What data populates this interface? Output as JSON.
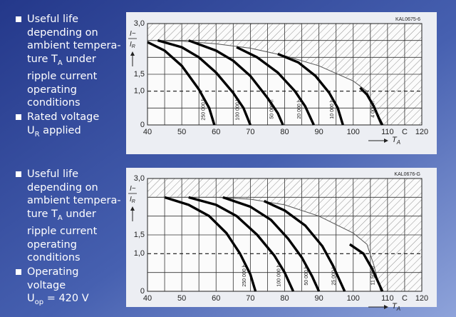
{
  "notes": [
    {
      "bullets": [
        {
          "lines": [
            [
              "Useful life"
            ],
            [
              "depending on"
            ],
            [
              "ambient tempera-"
            ],
            [
              "ture T",
              {
                "sub": "A"
              },
              " under"
            ],
            [
              "ripple current"
            ],
            [
              "operating"
            ],
            [
              "conditions"
            ]
          ]
        },
        {
          "lines": [
            [
              "Rated voltage"
            ],
            [
              "U",
              {
                "sub": "R"
              },
              " applied"
            ]
          ]
        }
      ]
    },
    {
      "bullets": [
        {
          "lines": [
            [
              "Useful life"
            ],
            [
              "depending on"
            ],
            [
              "ambient tempera-"
            ],
            [
              "ture T",
              {
                "sub": "A"
              },
              " under"
            ],
            [
              "ripple current"
            ],
            [
              "operating"
            ],
            [
              "conditions"
            ]
          ]
        },
        {
          "lines": [
            [
              "Operating"
            ],
            [
              "voltage"
            ],
            [
              "U",
              {
                "sub": "op"
              },
              " = 420 V"
            ]
          ]
        }
      ]
    }
  ],
  "chart_data": [
    {
      "type": "line",
      "code": "KAL0675-6",
      "ylabel": {
        "numerator": "I~",
        "denominator": "I",
        "denominator_sub": "R"
      },
      "xlabel": {
        "text": "T",
        "sub": "A"
      },
      "xlim": [
        40,
        120
      ],
      "ylim": [
        0,
        3
      ],
      "xticks": [
        40,
        50,
        60,
        70,
        80,
        90,
        100,
        110,
        {
          "value": 115,
          "label": "C"
        },
        120
      ],
      "yticks": [
        {
          "value": 3,
          "label": "3,0"
        },
        {
          "value": 1.5,
          "label": "1,5"
        },
        {
          "value": 1,
          "label": "1,0"
        },
        0
      ],
      "xgrid": [
        45,
        50,
        55,
        60,
        65,
        70,
        75,
        80,
        85,
        90,
        95,
        100,
        105,
        110,
        115
      ],
      "ygrid": [
        0.5,
        1.5,
        2,
        2.5
      ],
      "reference_line": 1,
      "limit": {
        "x": [
          40,
          50,
          60,
          70,
          80,
          90,
          100,
          104,
          106,
          108
        ],
        "values": [
          2.5,
          2.48,
          2.4,
          2.27,
          2.05,
          1.75,
          1.3,
          1.0,
          0.5,
          0
        ]
      },
      "series": [
        {
          "name": "250 000 h",
          "color": "#000000",
          "x": [
            40,
            45,
            50,
            55,
            58,
            59.5
          ],
          "values": [
            2.45,
            2.2,
            1.75,
            1.05,
            0.5,
            0
          ]
        },
        {
          "name": "100 000 h",
          "color": "#000000",
          "x": [
            43,
            50,
            55,
            60,
            65,
            68,
            70
          ],
          "values": [
            2.5,
            2.3,
            2.0,
            1.55,
            0.95,
            0.5,
            0
          ]
        },
        {
          "name": "50 000 h",
          "color": "#000000",
          "x": [
            52,
            60,
            65,
            70,
            75,
            78,
            79.5
          ],
          "values": [
            2.5,
            2.2,
            1.9,
            1.45,
            0.8,
            0.35,
            0
          ]
        },
        {
          "name": "20 000 h",
          "color": "#000000",
          "x": [
            66,
            72,
            78,
            83,
            86,
            88.5
          ],
          "values": [
            2.3,
            2.0,
            1.55,
            1.0,
            0.55,
            0
          ]
        },
        {
          "name": "10 000 h",
          "color": "#000000",
          "x": [
            78,
            84,
            89,
            93,
            95.5,
            97
          ],
          "values": [
            2.1,
            1.85,
            1.45,
            0.95,
            0.5,
            0
          ]
        },
        {
          "name": "4 000 h",
          "color": "#000000",
          "x": [
            102,
            104,
            106,
            107.5,
            108.5
          ],
          "values": [
            1.1,
            0.9,
            0.55,
            0.2,
            0
          ]
        }
      ]
    },
    {
      "type": "line",
      "code": "KAL0676-G",
      "ylabel": {
        "numerator": "I~",
        "denominator": "I",
        "denominator_sub": "R"
      },
      "xlabel": {
        "text": "T",
        "sub": "A"
      },
      "xlim": [
        40,
        120
      ],
      "ylim": [
        0,
        3
      ],
      "xticks": [
        40,
        50,
        60,
        70,
        80,
        90,
        100,
        110,
        {
          "value": 115,
          "label": "C"
        },
        120
      ],
      "yticks": [
        {
          "value": 3,
          "label": "3,0"
        },
        {
          "value": 1.5,
          "label": "1,5"
        },
        {
          "value": 1,
          "label": "1,0"
        },
        0
      ],
      "xgrid": [
        45,
        50,
        55,
        60,
        65,
        70,
        75,
        80,
        85,
        90,
        95,
        100,
        105,
        110,
        115
      ],
      "ygrid": [
        0.5,
        1.5,
        2,
        2.5
      ],
      "reference_line": 1,
      "limit": {
        "x": [
          40,
          60,
          70,
          80,
          90,
          100,
          104,
          106,
          108
        ],
        "values": [
          2.5,
          2.5,
          2.45,
          2.3,
          2.0,
          1.55,
          1.25,
          0.7,
          0
        ]
      },
      "series": [
        {
          "name": "250 000 h",
          "color": "#000000",
          "x": [
            45,
            52,
            58,
            63,
            67,
            70,
            71.5
          ],
          "values": [
            2.5,
            2.3,
            2.0,
            1.55,
            1.0,
            0.45,
            0
          ]
        },
        {
          "name": "100 000 h",
          "color": "#000000",
          "x": [
            52,
            60,
            66,
            72,
            77,
            80,
            82.5
          ],
          "values": [
            2.5,
            2.3,
            2.0,
            1.5,
            0.95,
            0.5,
            0
          ]
        },
        {
          "name": "50 000 h",
          "color": "#000000",
          "x": [
            62,
            70,
            76,
            81,
            85,
            88,
            90
          ],
          "values": [
            2.5,
            2.25,
            1.9,
            1.4,
            0.9,
            0.4,
            0
          ]
        },
        {
          "name": "25 000 h",
          "color": "#000000",
          "x": [
            74,
            80,
            86,
            91,
            94,
            96,
            97.5
          ],
          "values": [
            2.4,
            2.15,
            1.75,
            1.2,
            0.7,
            0.3,
            0
          ]
        },
        {
          "name": "11 500 h",
          "color": "#000000",
          "x": [
            99,
            103,
            105.5,
            107.5,
            108.5
          ],
          "values": [
            1.25,
            1.0,
            0.6,
            0.2,
            0
          ]
        }
      ]
    }
  ]
}
